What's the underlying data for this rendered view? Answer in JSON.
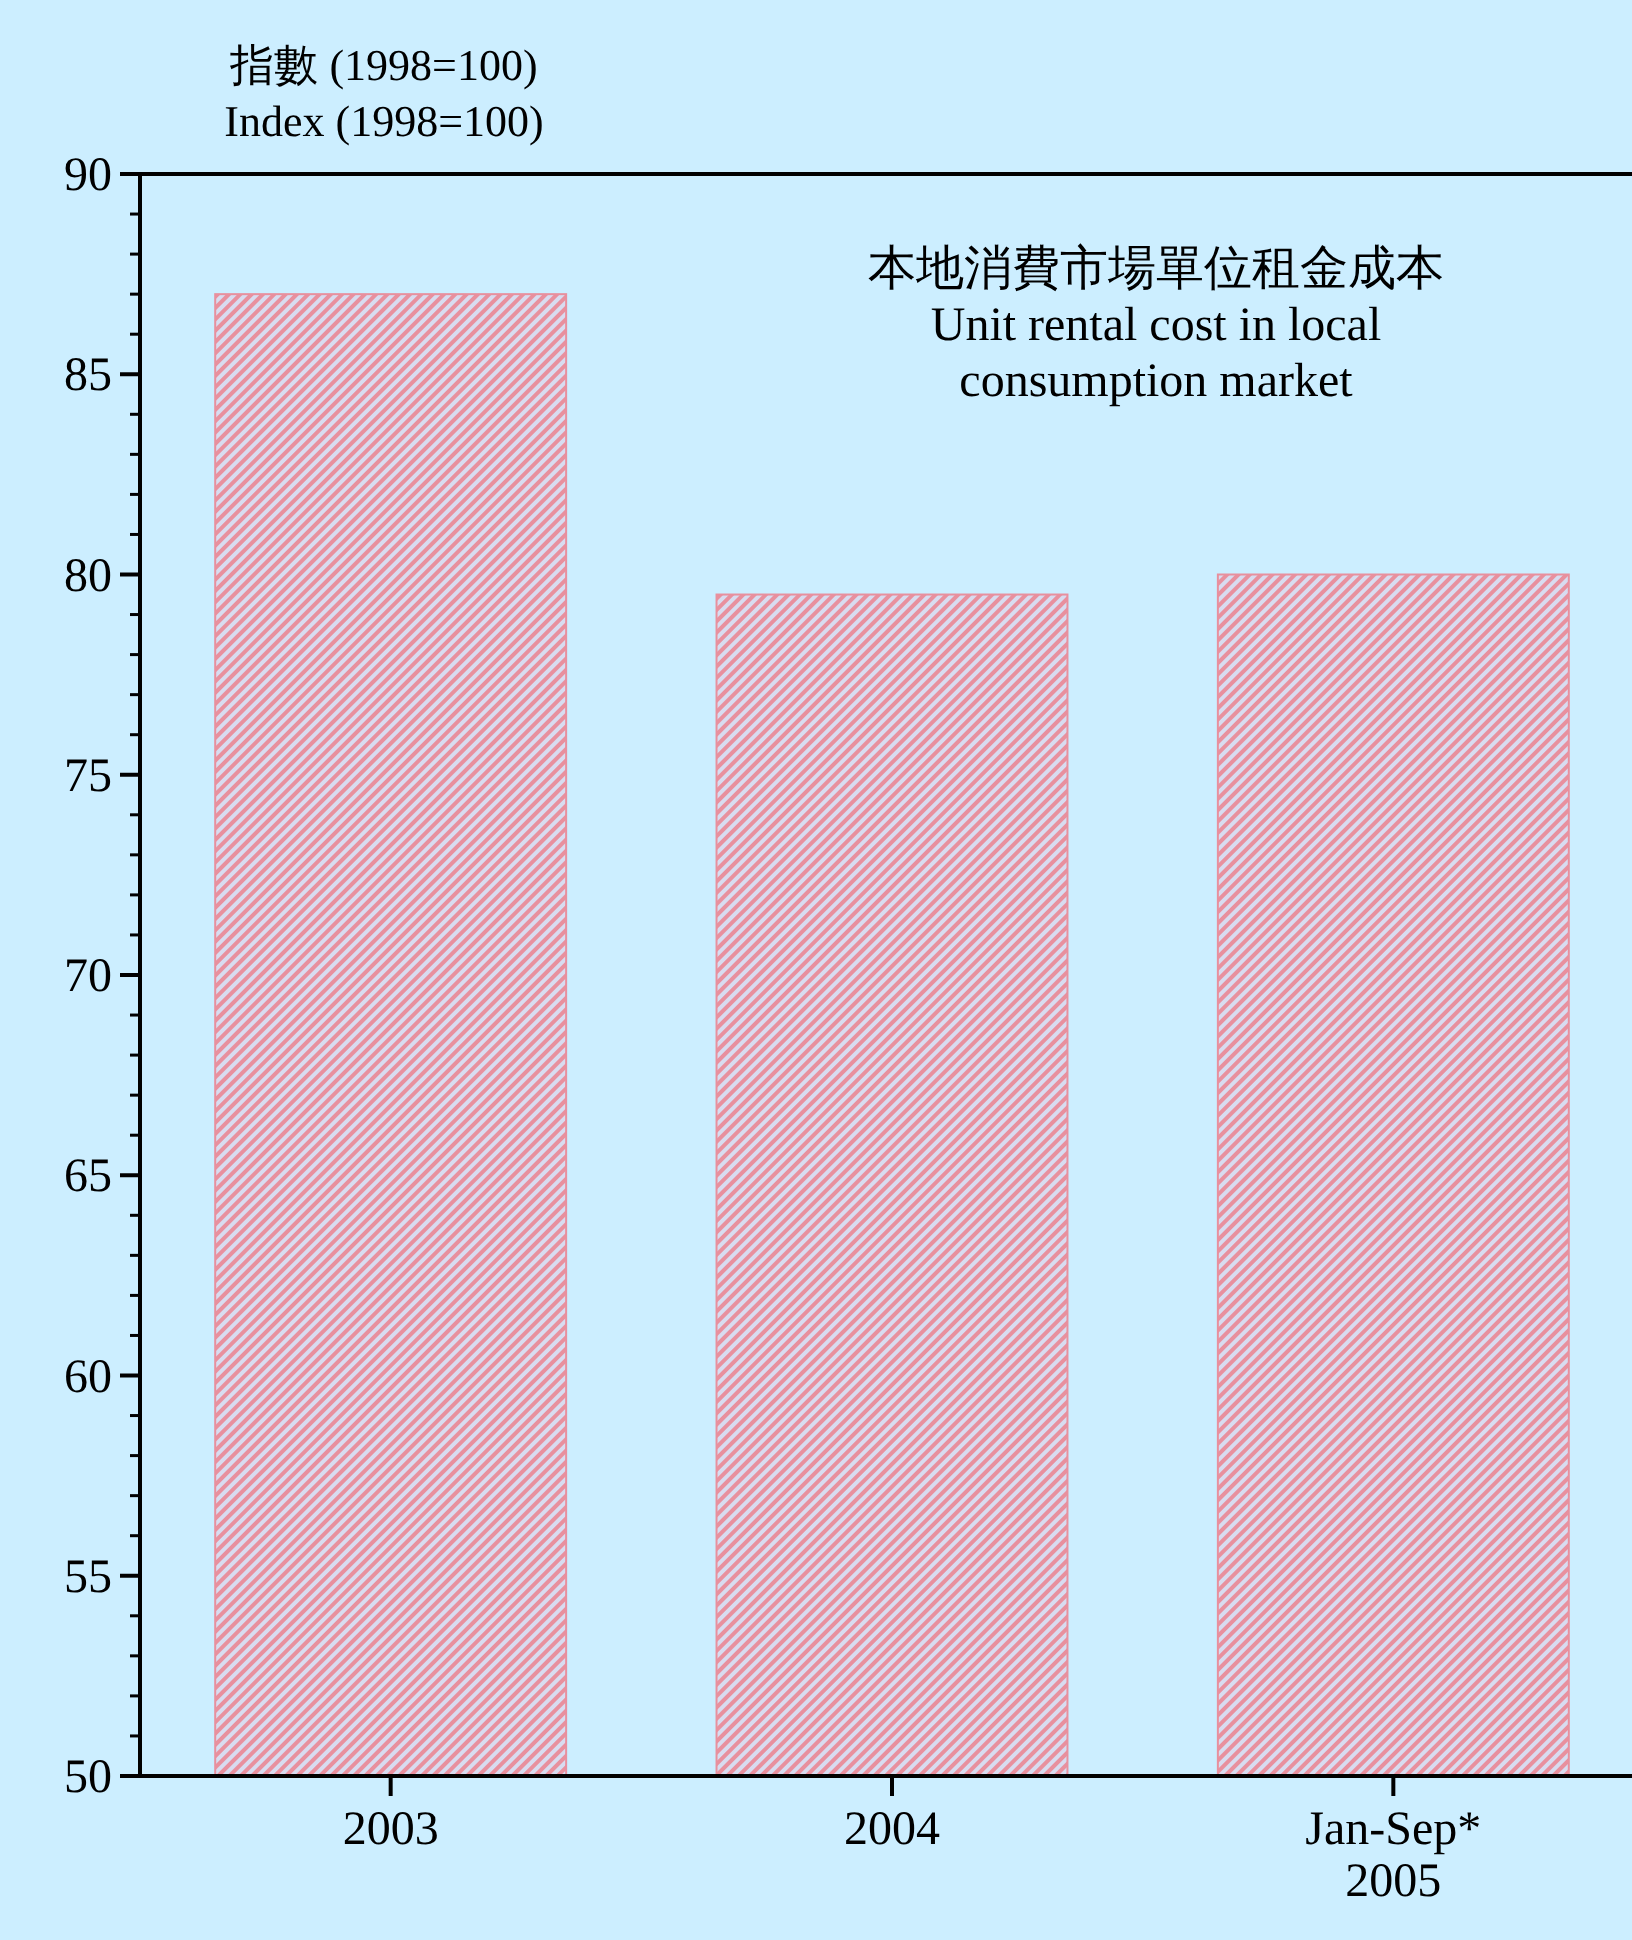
{
  "chart_data": {
    "type": "bar",
    "title": "本地消費市場單位租金成本\nUnit rental cost in local\nconsumption market",
    "ylabel": "指數 (1998=100)\nIndex (1998=100)",
    "categories": [
      "2003",
      "2004",
      "Jan-Sep*\n2005"
    ],
    "series": [
      {
        "color": "#e8909e",
        "values": [
          87.0,
          79.5,
          80.0
        ]
      }
    ],
    "ylim": [
      50,
      90
    ],
    "yticks": [
      50,
      {
        "value": 51,
        "label": null
      },
      {
        "value": 52,
        "label": null
      },
      {
        "value": 53,
        "label": null
      },
      {
        "value": 54,
        "label": null
      },
      55,
      {
        "value": 56,
        "label": null
      },
      {
        "value": 57,
        "label": null
      },
      {
        "value": 58,
        "label": null
      },
      {
        "value": 59,
        "label": null
      },
      60,
      {
        "value": 61,
        "label": null
      },
      {
        "value": 62,
        "label": null
      },
      {
        "value": 63,
        "label": null
      },
      {
        "value": 64,
        "label": null
      },
      65,
      {
        "value": 66,
        "label": null
      },
      {
        "value": 67,
        "label": null
      },
      {
        "value": 68,
        "label": null
      },
      {
        "value": 69,
        "label": null
      },
      70,
      {
        "value": 71,
        "label": null
      },
      {
        "value": 72,
        "label": null
      },
      {
        "value": 73,
        "label": null
      },
      {
        "value": 74,
        "label": null
      },
      75,
      {
        "value": 76,
        "label": null
      },
      {
        "value": 77,
        "label": null
      },
      {
        "value": 78,
        "label": null
      },
      {
        "value": 79,
        "label": null
      },
      80,
      {
        "value": 81,
        "label": null
      },
      {
        "value": 82,
        "label": null
      },
      {
        "value": 83,
        "label": null
      },
      {
        "value": 84,
        "label": null
      },
      85,
      {
        "value": 86,
        "label": null
      },
      {
        "value": 87,
        "label": null
      },
      {
        "value": 88,
        "label": null
      },
      {
        "value": 89,
        "label": null
      },
      90
    ],
    "grid": false
  }
}
